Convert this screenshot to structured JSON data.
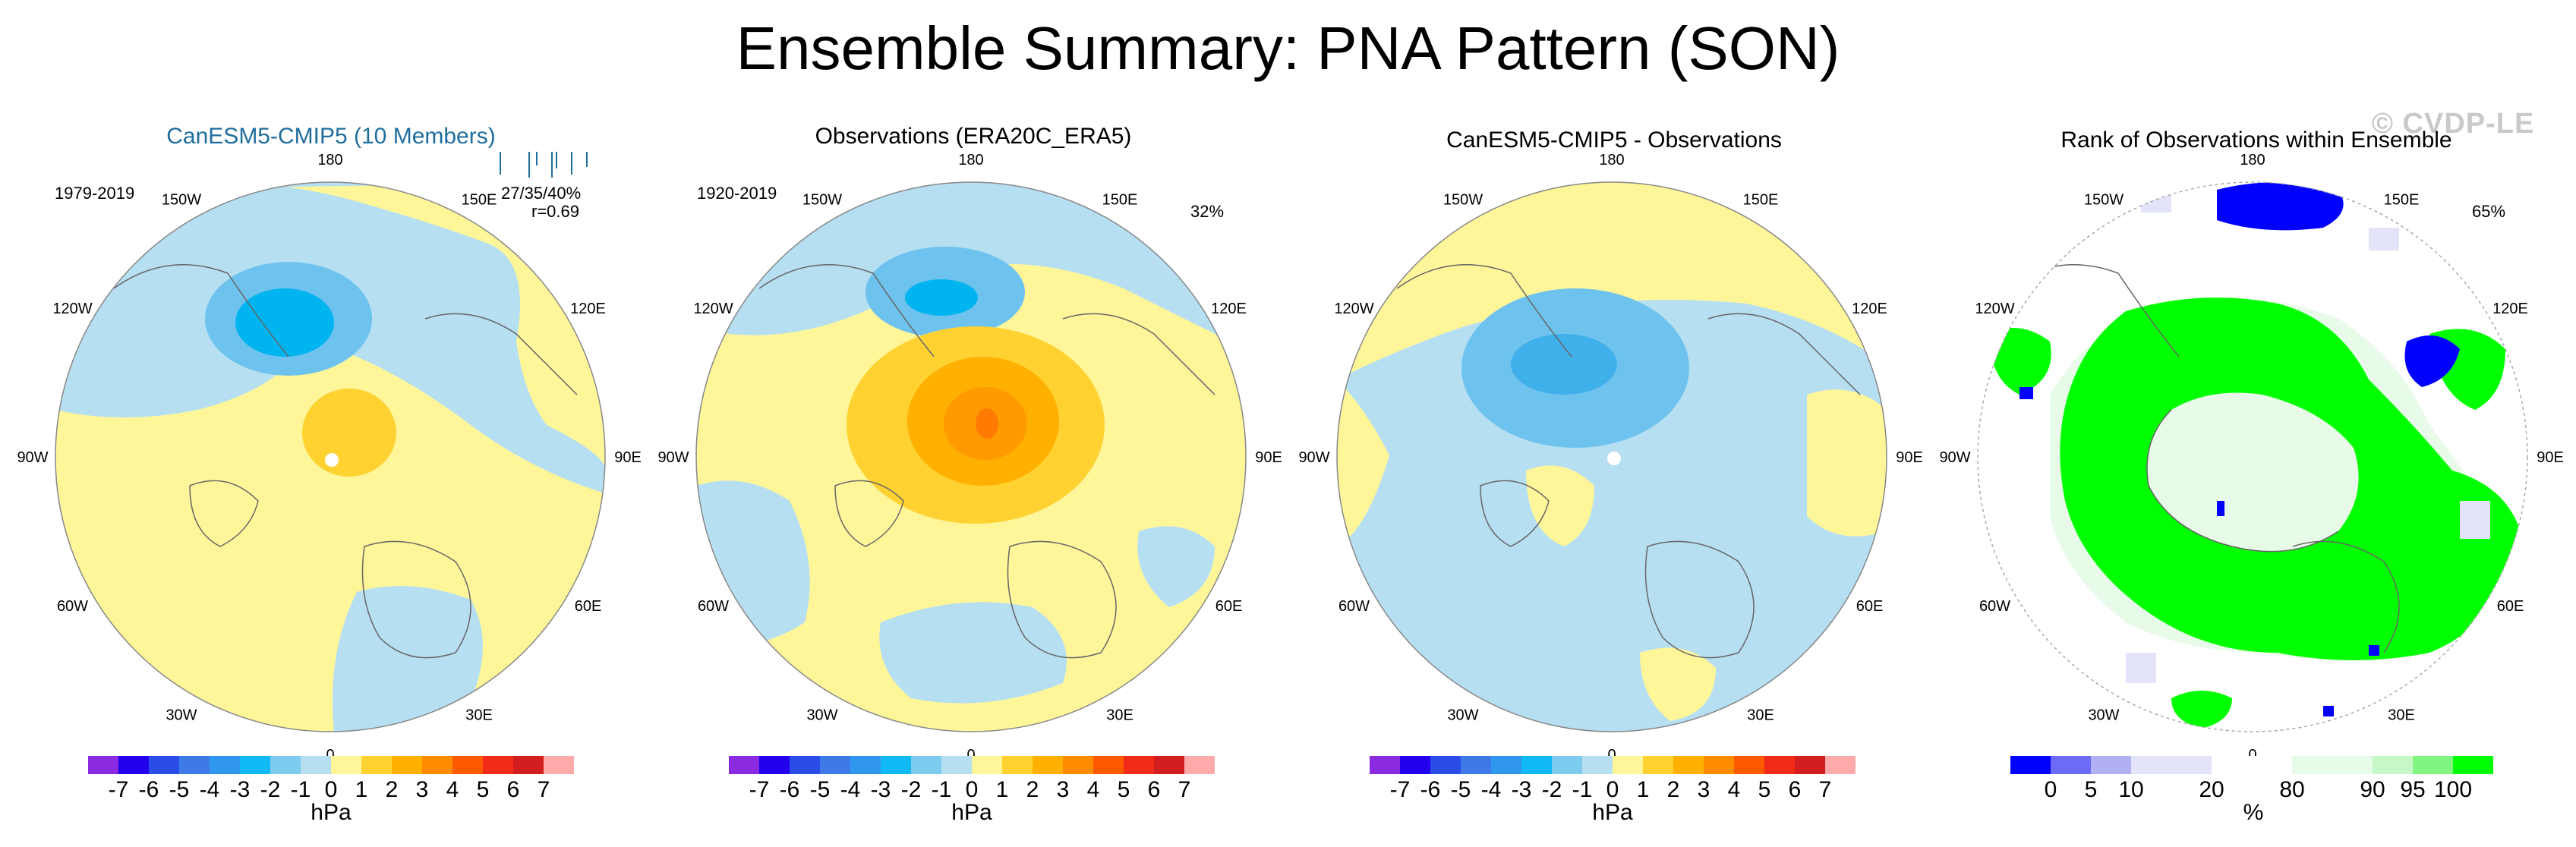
{
  "title": "Ensemble Summary: PNA Pattern (SON)",
  "watermark": "© CVDP-LE",
  "colors": {
    "ocean_light": "#b6dff2",
    "blue_mid": "#6ec3ee",
    "blue_deep": "#00b4f0",
    "yellow": "#fff69a",
    "orange_light": "#ffd232",
    "orange_mid": "#ffb000",
    "orange_deep": "#ff7a00",
    "rank_green": "#00ff00",
    "rank_blue": "#0000ff",
    "rank_lav": "#e3e3f9",
    "rank_pale": "#e8fbe8"
  },
  "long_labels": [
    "180",
    "150E",
    "120E",
    "90E",
    "60E",
    "30E",
    "0",
    "30W",
    "60W",
    "90W",
    "120W",
    "150W"
  ],
  "panels": [
    {
      "id": "model",
      "title": "CanESM5-CMIP5 (10 Members)",
      "left_note": "1979-2019",
      "right_note": "27/35/40%",
      "right_note2": "r=0.69"
    },
    {
      "id": "obs",
      "title": "Observations (ERA20C_ERA5)",
      "left_note": "1920-2019",
      "right_note": "32%"
    },
    {
      "id": "diff",
      "title": "CanESM5-CMIP5 - Observations"
    },
    {
      "id": "rank",
      "title": "Rank of Observations within Ensemble",
      "right_note": "65%"
    }
  ],
  "colorbar_hpa": {
    "units": "hPa",
    "colors": [
      "#8a2be2",
      "#2200ee",
      "#2b4ce8",
      "#3d7ae8",
      "#2f98ee",
      "#10b9f4",
      "#7ecbf0",
      "#b6dff2",
      "#fff69a",
      "#ffd232",
      "#ffb000",
      "#ff8c00",
      "#ff5a00",
      "#f22a18",
      "#d21e1e",
      "#ffaaaa"
    ],
    "labels": [
      "-7",
      "-6",
      "-5",
      "-4",
      "-3",
      "-2",
      "-1",
      "0",
      "1",
      "2",
      "3",
      "4",
      "5",
      "6",
      "7"
    ]
  },
  "colorbar_rank": {
    "units": "%",
    "colors": [
      "#0000ff",
      "#6b6bf5",
      "#b0b0f2",
      "#e3e3f9",
      "#e3e3f9",
      "#ffffff",
      "#ffffff",
      "#e8fbe8",
      "#e8fbe8",
      "#c6f7c6",
      "#80f580",
      "#00ff00"
    ],
    "labels": [
      "0",
      "5",
      "10",
      "20",
      "80",
      "90",
      "95",
      "100"
    ]
  },
  "chart_data": [
    {
      "type": "heatmap",
      "title": "CanESM5-CMIP5 (10 Members)",
      "projection": "north polar stereographic",
      "units": "hPa",
      "period": "1979-2019",
      "stats": "27/35/40%",
      "pattern_correlation": 0.69,
      "features": [
        "negative center over North Pacific (about -3 to -4 hPa)",
        "positive center over Canada/Arctic (about +1 to +2 hPa)"
      ]
    },
    {
      "type": "heatmap",
      "title": "Observations (ERA20C_ERA5)",
      "projection": "north polar stereographic",
      "units": "hPa",
      "period": "1920-2019",
      "explained_variance_pct": 32,
      "features": [
        "negative center over North Pacific (about -3 hPa)",
        "positive center over Arctic (about +3 to +4 hPa)"
      ]
    },
    {
      "type": "heatmap",
      "title": "CanESM5-CMIP5 - Observations",
      "projection": "north polar stereographic",
      "units": "hPa",
      "features": [
        "negative difference over Arctic (about -1 to -2 hPa)"
      ]
    },
    {
      "type": "heatmap",
      "title": "Rank of Observations within Ensemble",
      "projection": "north polar stereographic",
      "units": "%",
      "area_pct": 65,
      "features": [
        "rank 100% (green) ring over high latitudes",
        "rank 0% (blue) patches near 180 and 120E"
      ]
    }
  ]
}
